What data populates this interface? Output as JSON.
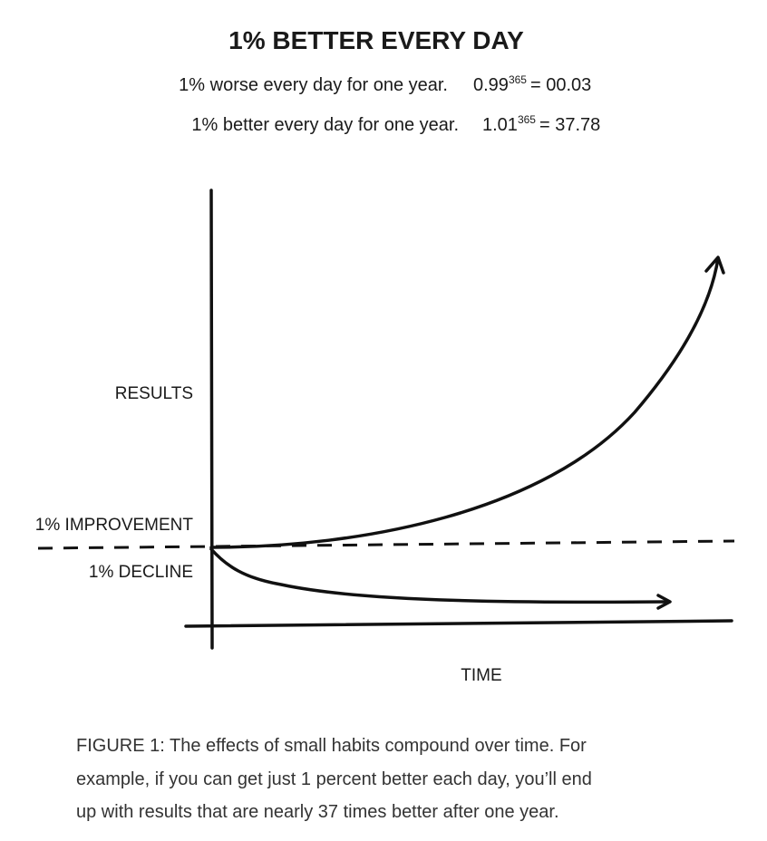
{
  "title": "1% BETTER EVERY DAY",
  "equations": [
    {
      "label": "1% worse every day for one year.",
      "base": "0.99",
      "exponent": "365",
      "result": "= 00.03"
    },
    {
      "label": "1% better every day for one year.",
      "base": "1.01",
      "exponent": "365",
      "result": "= 37.78"
    }
  ],
  "diagram": {
    "y_axis_label": "RESULTS",
    "improvement_label": "1% IMPROVEMENT",
    "decline_label": "1% DECLINE",
    "x_axis_label": "TIME"
  },
  "caption": [
    "FIGURE 1: The effects of small habits compound over time. For",
    "example, if you can get just 1 percent better each day, you’ll end",
    "up with results that are nearly 37 times better after one year."
  ]
}
